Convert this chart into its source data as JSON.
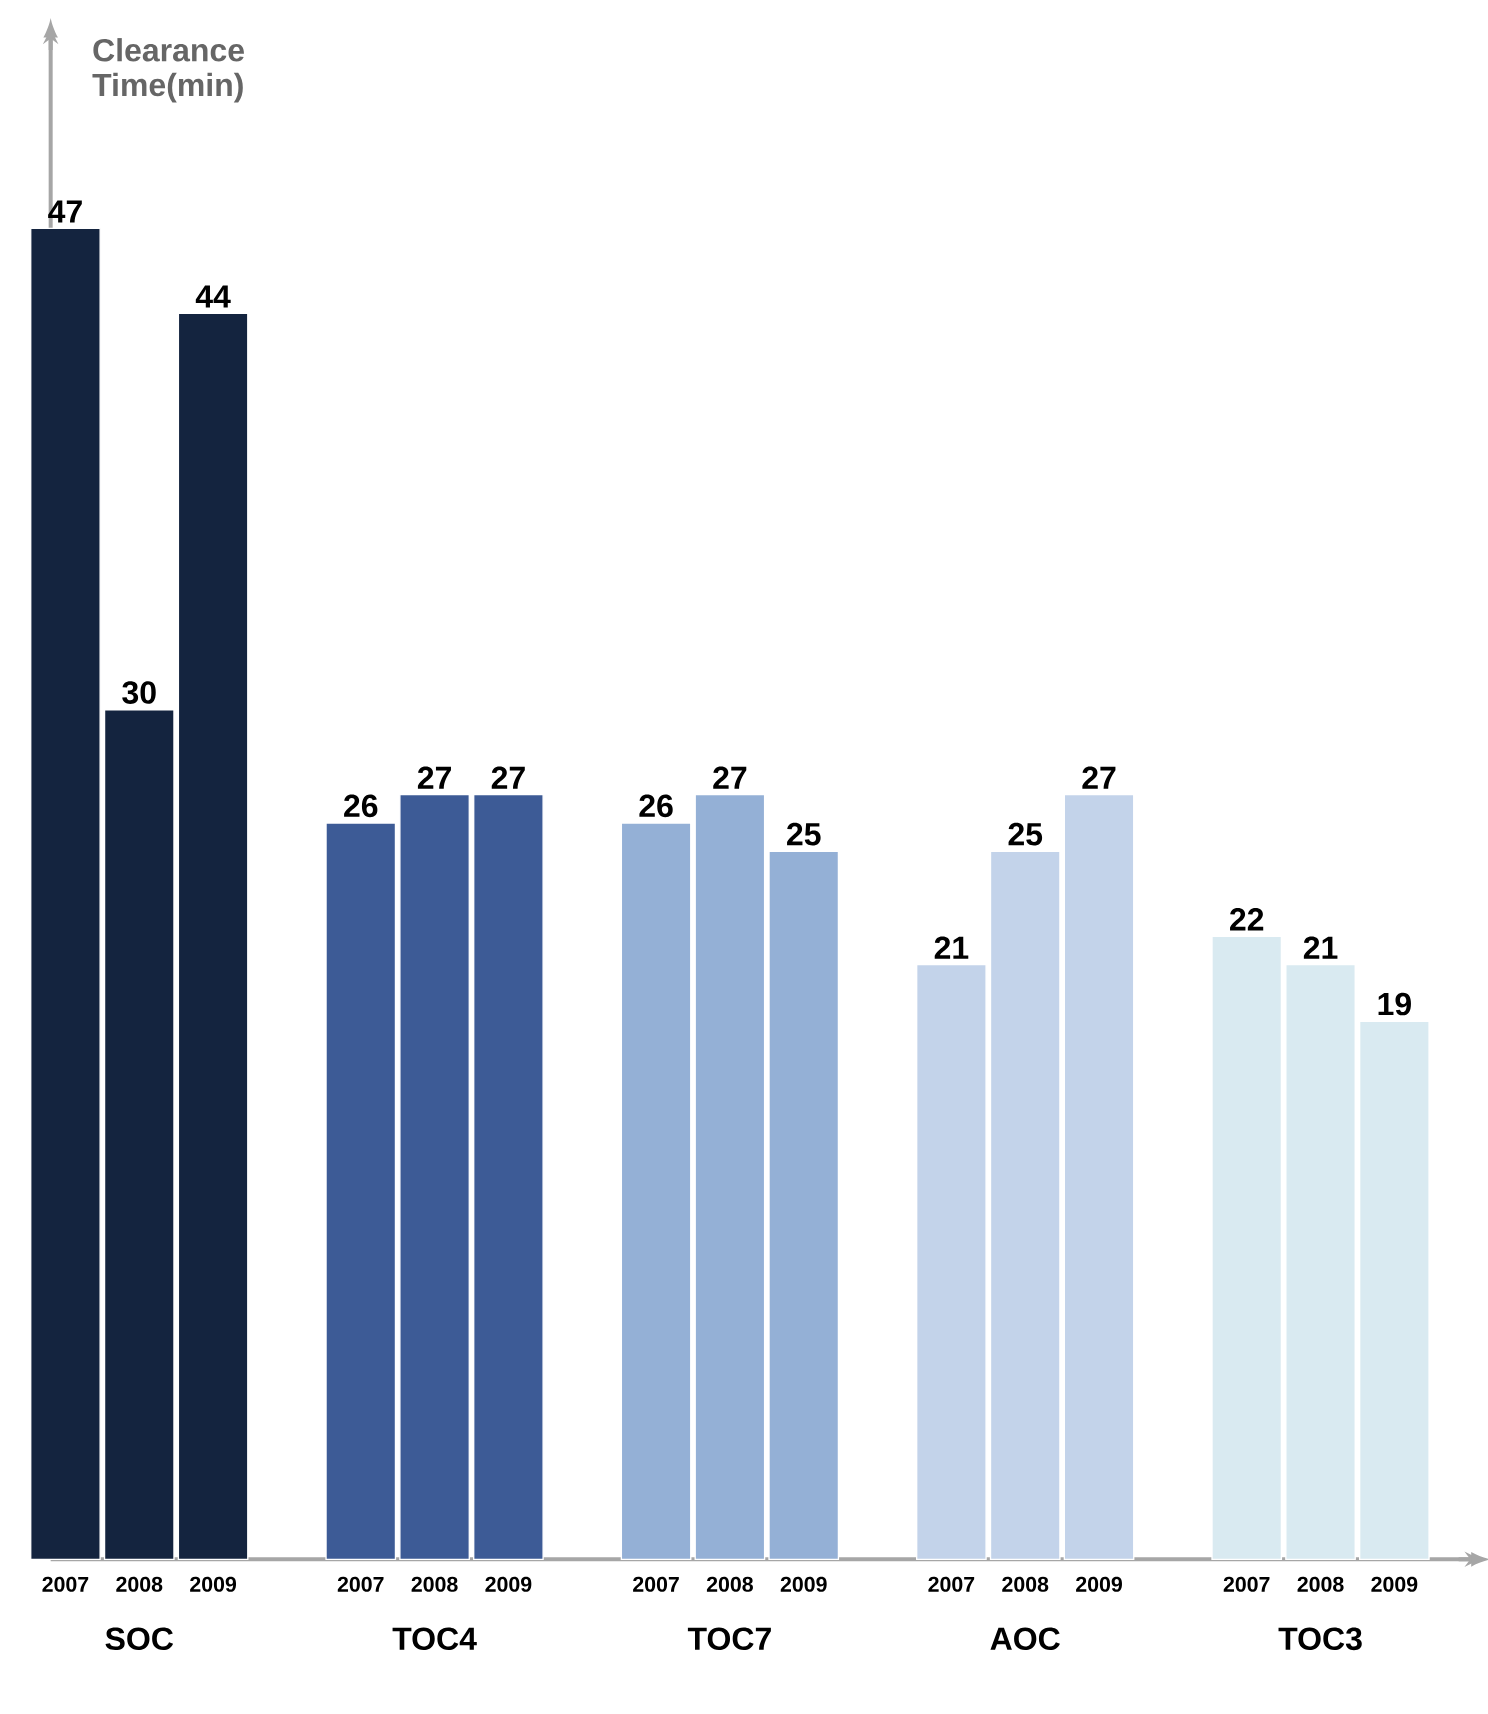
{
  "chart_data": {
    "type": "bar",
    "ylabel": "Clearance Time(min)",
    "categories": [
      "SOC",
      "TOC4",
      "TOC7",
      "AOC",
      "TOC3"
    ],
    "series": [
      {
        "name": "2007",
        "colors": [
          "#14243f",
          "#3d5b96",
          "#94b0d6",
          "#c3d3ea",
          "#d9eaf1"
        ],
        "values": [
          47,
          26,
          26,
          21,
          22
        ]
      },
      {
        "name": "2008",
        "colors": [
          "#14243f",
          "#3d5b96",
          "#94b0d6",
          "#c3d3ea",
          "#d9eaf1"
        ],
        "values": [
          30,
          27,
          27,
          25,
          21
        ]
      },
      {
        "name": "2009",
        "colors": [
          "#14243f",
          "#3d5b96",
          "#94b0d6",
          "#c3d3ea",
          "#d9eaf1"
        ],
        "values": [
          44,
          27,
          25,
          27,
          19
        ]
      }
    ],
    "data_labels": true
  }
}
